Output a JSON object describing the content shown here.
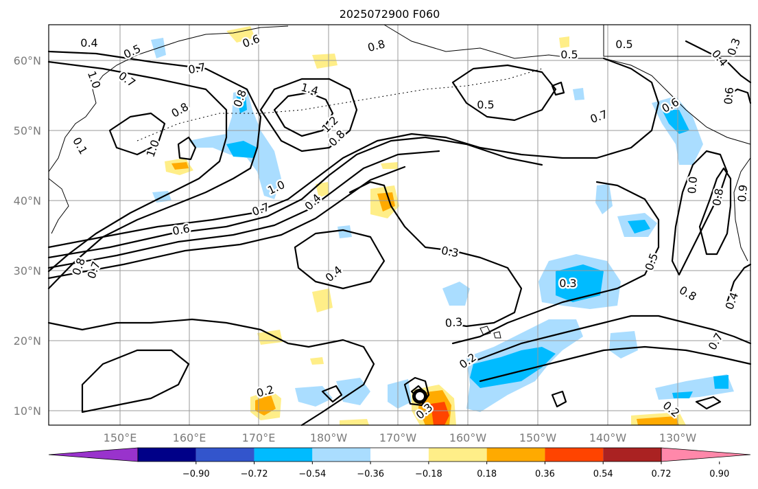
{
  "title": "2025072900 F060",
  "lat_labels": [
    "60°N",
    "50°N",
    "40°N",
    "30°N",
    "20°N",
    "10°N"
  ],
  "lon_labels": [
    "150°E",
    "160°E",
    "170°E",
    "180°W",
    "170°W",
    "160°W",
    "150°W",
    "140°W",
    "130°W"
  ],
  "contour_labels": [
    {
      "id": "c1",
      "text": "0.4"
    },
    {
      "id": "c2",
      "text": "0.5"
    },
    {
      "id": "c3",
      "text": "0.6"
    },
    {
      "id": "c4",
      "text": "0.8"
    },
    {
      "id": "c5",
      "text": "0.5"
    },
    {
      "id": "c6",
      "text": "0.5"
    },
    {
      "id": "c7",
      "text": "0.3"
    },
    {
      "id": "c8",
      "text": "0.7"
    },
    {
      "id": "c9",
      "text": "0.7"
    },
    {
      "id": "c10",
      "text": "1.0"
    },
    {
      "id": "c11",
      "text": "1.4"
    },
    {
      "id": "c12",
      "text": "0.8"
    },
    {
      "id": "c13",
      "text": "0.6"
    },
    {
      "id": "c14",
      "text": "0.5"
    },
    {
      "id": "c15",
      "text": "0.4"
    },
    {
      "id": "c16",
      "text": "0.6"
    },
    {
      "id": "c17",
      "text": "0.8"
    },
    {
      "id": "c18",
      "text": "0.1"
    },
    {
      "id": "c19",
      "text": "1.0"
    },
    {
      "id": "c20",
      "text": "1.2"
    },
    {
      "id": "c21",
      "text": "0.8"
    },
    {
      "id": "c22",
      "text": "0.7"
    },
    {
      "id": "c23",
      "text": "1.0"
    },
    {
      "id": "c24",
      "text": "0.7"
    },
    {
      "id": "c25",
      "text": "0.4"
    },
    {
      "id": "c26",
      "text": "0.6"
    },
    {
      "id": "c27",
      "text": "0.3"
    },
    {
      "id": "c28",
      "text": "0.8"
    },
    {
      "id": "c29",
      "text": "0.7"
    },
    {
      "id": "c30",
      "text": "0.4"
    },
    {
      "id": "c31",
      "text": "0.3"
    },
    {
      "id": "c32",
      "text": "0.5"
    },
    {
      "id": "c33",
      "text": "0.8"
    },
    {
      "id": "c34",
      "text": "0.4"
    },
    {
      "id": "c35",
      "text": "0.3"
    },
    {
      "id": "c36",
      "text": "0.2"
    },
    {
      "id": "c37",
      "text": "0.7"
    },
    {
      "id": "c38",
      "text": "0.2"
    },
    {
      "id": "c39",
      "text": "0.3"
    },
    {
      "id": "c40",
      "text": "0.2"
    },
    {
      "id": "c41",
      "text": "0.0"
    },
    {
      "id": "c42",
      "text": "0.8"
    },
    {
      "id": "c43",
      "text": "0.9"
    }
  ],
  "colorbar": {
    "ticks": [
      "−0.90",
      "−0.72",
      "−0.54",
      "−0.36",
      "−0.18",
      "0.18",
      "0.36",
      "0.54",
      "0.72",
      "0.90"
    ],
    "colors": [
      "#9933cc",
      "#000088",
      "#3355cc",
      "#00bbff",
      "#aaddff",
      "#ffffff",
      "#ffee88",
      "#ffaa00",
      "#ff4400",
      "#aa2222",
      "#ff88aa"
    ]
  }
}
